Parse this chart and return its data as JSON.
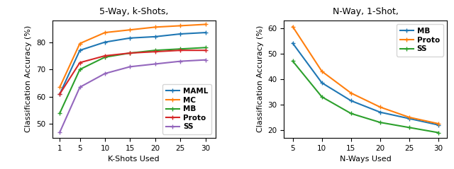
{
  "left_title": "5-Way, k-Shots,",
  "right_title": "N-Way, 1-Shot,",
  "left_xlabel": "K-Shots Used",
  "right_xlabel": "N-Ways Used",
  "ylabel": "Classification Accuracy (%)",
  "left_x": [
    1,
    5,
    10,
    15,
    20,
    25,
    30
  ],
  "left_MAML": [
    61.0,
    77.0,
    80.0,
    81.5,
    82.0,
    83.0,
    83.5
  ],
  "left_MC": [
    63.5,
    79.5,
    83.5,
    84.5,
    85.5,
    86.0,
    86.5
  ],
  "left_MB": [
    54.0,
    70.0,
    74.5,
    76.0,
    77.0,
    77.5,
    78.0
  ],
  "left_Proto": [
    61.0,
    72.5,
    75.0,
    76.0,
    76.5,
    77.0,
    77.0
  ],
  "left_SS": [
    47.0,
    63.5,
    68.5,
    71.0,
    72.0,
    73.0,
    73.5
  ],
  "right_x": [
    5,
    10,
    15,
    20,
    25,
    30
  ],
  "right_MB": [
    54.0,
    38.5,
    31.5,
    27.0,
    24.5,
    22.0
  ],
  "right_Proto": [
    60.5,
    43.0,
    34.5,
    29.0,
    25.0,
    22.5
  ],
  "right_SS": [
    47.0,
    33.0,
    26.5,
    23.0,
    21.0,
    19.0
  ],
  "color_MAML": "#1f77b4",
  "color_MC": "#ff7f0e",
  "color_MB": "#2ca02c",
  "color_Proto": "#d62728",
  "color_SS": "#9467bd",
  "left_ylim": [
    45,
    88
  ],
  "left_yticks": [
    50,
    60,
    70,
    80
  ],
  "right_ylim": [
    17,
    63
  ],
  "right_yticks": [
    20,
    30,
    40,
    50,
    60
  ]
}
